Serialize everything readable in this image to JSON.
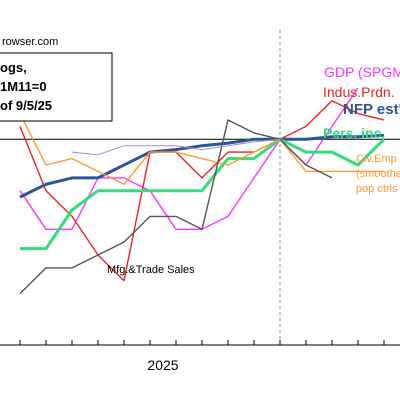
{
  "header": {
    "source": "rowser.com",
    "legend_lines": [
      "ogs,",
      "1M11=0",
      "of 9/5/25"
    ]
  },
  "chart_data": {
    "type": "line",
    "x": [
      1,
      2,
      3,
      4,
      5,
      6,
      7,
      8,
      9,
      10,
      11,
      12,
      13,
      14,
      15,
      16,
      17
    ],
    "x_tick_labels": [
      {
        "x": 6.5,
        "label": "2025"
      }
    ],
    "ylim": [
      -1.6,
      0.85
    ],
    "reference_x": 11,
    "reference_y": 0,
    "grid": false,
    "series": [
      {
        "name": "GDP (SPGMI)",
        "color": "#ff33ff",
        "width": 1.4,
        "values": [
          -0.4,
          -0.7,
          -0.7,
          -0.3,
          -0.3,
          -0.4,
          -0.7,
          -0.7,
          -0.6,
          -0.3,
          0,
          -0.2,
          0.1,
          0.4,
          null,
          null,
          null
        ]
      },
      {
        "name": "Indus.Prdn.",
        "color": "#ee2222",
        "width": 1.4,
        "values": [
          0.1,
          -0.4,
          -0.6,
          -0.9,
          -1.1,
          -0.1,
          -0.1,
          -0.3,
          -0.1,
          -0.1,
          0,
          0.1,
          0.3,
          0.2,
          0.15,
          null,
          null
        ]
      },
      {
        "name": "NFP est'",
        "color": "#2b5597",
        "width": 3,
        "values": [
          -0.45,
          -0.35,
          -0.3,
          -0.3,
          -0.2,
          -0.1,
          -0.08,
          -0.05,
          -0.03,
          0,
          0,
          0,
          0.02,
          0.02,
          0.03,
          null,
          null
        ]
      },
      {
        "name": "Pers. inc.",
        "color": "#33dd77",
        "width": 3,
        "values": [
          -0.85,
          -0.85,
          -0.55,
          -0.4,
          -0.4,
          -0.4,
          -0.4,
          -0.4,
          -0.15,
          -0.15,
          0,
          -0.1,
          -0.1,
          -0.2,
          0,
          null,
          null
        ]
      },
      {
        "name": "Civ.Emp",
        "extra_label_lines": [
          "(smoothe",
          "pop ctrls"
        ],
        "color": "#ff9933",
        "width": 1.4,
        "values": [
          0.2,
          -0.2,
          -0.15,
          -0.25,
          -0.35,
          -0.1,
          -0.1,
          -0.15,
          -0.2,
          -0.1,
          0,
          -0.25,
          -0.25,
          -0.25,
          -0.25,
          null,
          null
        ]
      },
      {
        "name": "Mfg.&Trade Sales",
        "color": "#555555",
        "width": 1.4,
        "values": [
          -1.2,
          -1,
          -1,
          -0.9,
          -0.8,
          -0.6,
          -0.6,
          -0.7,
          0.15,
          0.05,
          0,
          -0.2,
          -0.3,
          null,
          null,
          null,
          null
        ]
      },
      {
        "name": "",
        "color": "#aa88cc",
        "width": 1,
        "values": [
          null,
          null,
          -0.1,
          -0.12,
          -0.05,
          -0.05,
          -0.05,
          -0.08,
          -0.05,
          -0.02,
          0,
          null,
          null,
          null,
          null,
          null,
          null
        ]
      }
    ]
  }
}
